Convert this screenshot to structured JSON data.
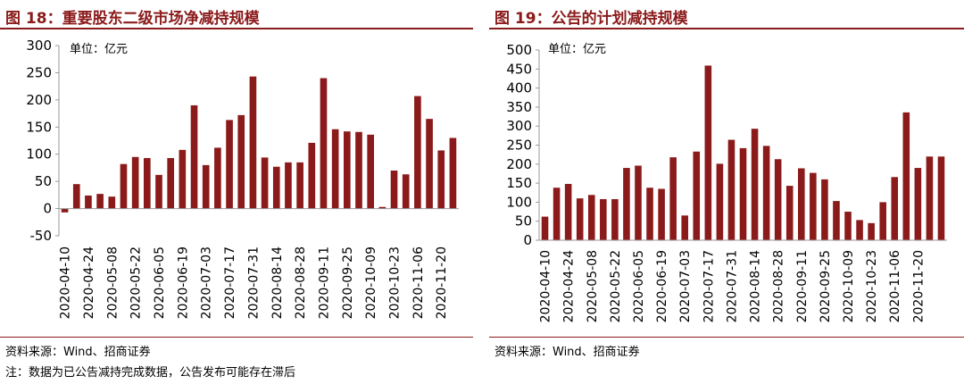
{
  "left": {
    "title": "图 18：重要股东二级市场净减持规模",
    "unit": "单位：亿元",
    "source": "资料来源：Wind、招商证券",
    "note": "注：数据为已公告减持完成数据，公告发布可能存在滞后"
  },
  "right": {
    "title": "图 19：公告的计划减持规模",
    "unit": "单位：亿元",
    "source": "资料来源：Wind、招商证券"
  },
  "colors": {
    "bar": "#8b1a1a",
    "title": "#8b1a1a",
    "axis": "#999999"
  },
  "chart_data": [
    {
      "type": "bar",
      "ylim": [
        -50,
        300
      ],
      "yticks": [
        -50,
        0,
        50,
        100,
        150,
        200,
        250,
        300
      ],
      "tick_labels": [
        "2020-04-10",
        "2020-04-24",
        "2020-05-08",
        "2020-05-22",
        "2020-06-05",
        "2020-06-19",
        "2020-07-03",
        "2020-07-17",
        "2020-07-31",
        "2020-08-14",
        "2020-08-28",
        "2020-09-11",
        "2020-09-25",
        "2020-10-09",
        "2020-10-23",
        "2020-11-06",
        "2020-11-20"
      ],
      "values": [
        -7,
        45,
        24,
        27,
        22,
        82,
        95,
        93,
        62,
        93,
        108,
        190,
        80,
        112,
        163,
        172,
        243,
        94,
        77,
        85,
        85,
        121,
        240,
        146,
        142,
        141,
        136,
        3,
        70,
        63,
        207,
        165,
        107,
        130
      ],
      "grid": false
    },
    {
      "type": "bar",
      "ylim": [
        0,
        500
      ],
      "yticks": [
        0,
        50,
        100,
        150,
        200,
        250,
        300,
        350,
        400,
        450,
        500
      ],
      "tick_labels": [
        "2020-04-10",
        "2020-04-24",
        "2020-05-08",
        "2020-05-22",
        "2020-06-05",
        "2020-06-19",
        "2020-07-03",
        "2020-07-17",
        "2020-07-31",
        "2020-08-14",
        "2020-08-28",
        "2020-09-11",
        "2020-09-25",
        "2020-10-09",
        "2020-10-23",
        "2020-11-06",
        "2020-11-20"
      ],
      "values": [
        62,
        138,
        148,
        110,
        119,
        108,
        108,
        190,
        196,
        138,
        135,
        218,
        65,
        233,
        459,
        201,
        264,
        242,
        293,
        248,
        213,
        143,
        189,
        177,
        160,
        103,
        75,
        53,
        45,
        100,
        166,
        336,
        190,
        220,
        220
      ],
      "grid": false
    }
  ]
}
